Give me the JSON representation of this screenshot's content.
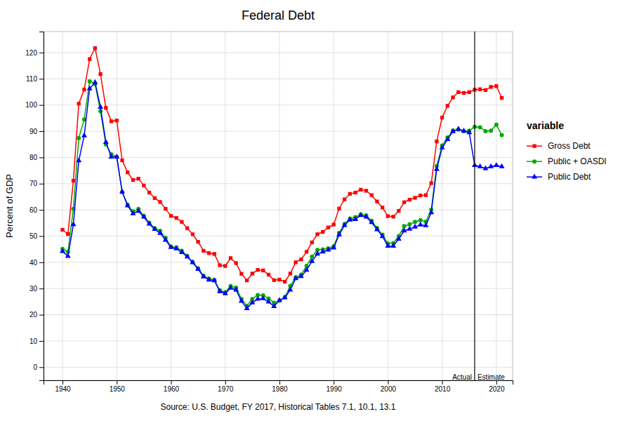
{
  "chart_data": {
    "type": "line",
    "title": "Federal Debt",
    "xlabel": "Source: U.S. Budget, FY 2017, Historical Tables 7.1, 10.1, 13.1",
    "ylabel": "Percent of GDP",
    "legend_title": "variable",
    "legend": "right",
    "grid": true,
    "x": [
      1940,
      1941,
      1942,
      1943,
      1944,
      1945,
      1946,
      1947,
      1948,
      1949,
      1950,
      1951,
      1952,
      1953,
      1954,
      1955,
      1956,
      1957,
      1958,
      1959,
      1960,
      1961,
      1962,
      1963,
      1964,
      1965,
      1966,
      1967,
      1968,
      1969,
      1970,
      1971,
      1972,
      1973,
      1974,
      1975,
      1976,
      1977,
      1978,
      1979,
      1980,
      1981,
      1982,
      1983,
      1984,
      1985,
      1986,
      1987,
      1988,
      1989,
      1990,
      1991,
      1992,
      1993,
      1994,
      1995,
      1996,
      1997,
      1998,
      1999,
      2000,
      2001,
      2002,
      2003,
      2004,
      2005,
      2006,
      2007,
      2008,
      2009,
      2010,
      2011,
      2012,
      2013,
      2014,
      2015,
      2016,
      2017,
      2018,
      2019,
      2020,
      2021
    ],
    "series": [
      {
        "name": "Gross Debt",
        "color": "#FF0000",
        "marker": "square",
        "values": [
          52.4,
          50.8,
          71.1,
          100.5,
          105.9,
          117.5,
          121.7,
          111.8,
          98.9,
          93.8,
          94.1,
          78.9,
          74.3,
          71.4,
          71.9,
          69.3,
          66.6,
          64.5,
          63.0,
          60.4,
          57.7,
          56.9,
          55.4,
          53.0,
          50.7,
          47.8,
          44.4,
          43.5,
          43.2,
          38.9,
          38.6,
          41.6,
          39.7,
          35.6,
          33.1,
          35.7,
          37.1,
          36.9,
          35.3,
          33.2,
          33.4,
          32.6,
          35.7,
          40.0,
          41.1,
          44.0,
          47.6,
          50.7,
          51.6,
          53.3,
          54.4,
          60.5,
          64.0,
          66.1,
          66.6,
          67.7,
          67.3,
          65.6,
          63.2,
          60.9,
          57.6,
          57.4,
          59.6,
          62.9,
          63.9,
          64.6,
          65.5,
          65.6,
          70.2,
          86.1,
          95.2,
          99.7,
          102.9,
          104.9,
          104.6,
          104.9,
          105.8,
          106.0,
          105.7,
          106.9,
          107.2,
          102.7
        ]
      },
      {
        "name": "Public + OASDI",
        "color": "#00AA00",
        "marker": "circle",
        "values": [
          45.1,
          44.0,
          60.4,
          87.4,
          94.5,
          109.0,
          108.0,
          97.6,
          85.0,
          81.2,
          80.2,
          66.8,
          62.0,
          59.4,
          60.4,
          57.7,
          55.1,
          53.0,
          52.0,
          49.3,
          46.0,
          45.7,
          44.4,
          42.4,
          40.1,
          37.7,
          34.9,
          33.8,
          33.3,
          29.3,
          28.6,
          30.9,
          30.3,
          26.0,
          23.4,
          26.0,
          27.5,
          27.4,
          26.2,
          24.6,
          25.4,
          26.7,
          31.0,
          34.3,
          35.3,
          38.6,
          42.2,
          44.7,
          44.9,
          45.3,
          46.1,
          51.2,
          54.6,
          56.7,
          57.2,
          58.3,
          57.9,
          55.8,
          53.1,
          50.5,
          47.2,
          47.3,
          50.0,
          53.8,
          54.5,
          55.4,
          56.1,
          55.5,
          60.1,
          76.7,
          84.5,
          87.6,
          90.3,
          90.6,
          90.0,
          90.2,
          91.7,
          91.5,
          90.0,
          90.2,
          92.5,
          88.5
        ]
      },
      {
        "name": "Public Debt",
        "color": "#0000FF",
        "marker": "triangle",
        "values": [
          44.2,
          42.3,
          54.4,
          78.8,
          88.3,
          106.2,
          108.6,
          99.2,
          85.8,
          80.2,
          80.2,
          66.9,
          61.6,
          58.6,
          59.5,
          57.3,
          54.6,
          52.6,
          51.1,
          48.5,
          45.7,
          45.2,
          43.8,
          42.1,
          39.9,
          37.4,
          34.5,
          33.3,
          33.0,
          28.9,
          28.1,
          30.2,
          29.5,
          25.2,
          22.4,
          24.6,
          26.0,
          26.2,
          24.9,
          23.2,
          25.5,
          26.5,
          29.5,
          33.8,
          34.6,
          37.0,
          40.4,
          43.2,
          44.0,
          44.7,
          45.5,
          50.5,
          54.1,
          56.2,
          56.4,
          57.9,
          57.3,
          55.2,
          52.5,
          49.9,
          46.2,
          46.2,
          48.9,
          52.0,
          52.7,
          53.5,
          54.3,
          54.0,
          59.0,
          75.5,
          83.7,
          86.9,
          89.9,
          90.8,
          90.1,
          89.5,
          77.0,
          76.5,
          75.8,
          76.5,
          77.0,
          76.5
        ]
      }
    ],
    "vertical_line": {
      "x": 2016
    },
    "annotations": [
      {
        "text": "Actual",
        "x": 2016,
        "y": -2.5,
        "align": "right"
      },
      {
        "text": "Estimate",
        "x": 2016,
        "y": -2.5,
        "align": "left"
      }
    ],
    "xlim": [
      1936.5,
      2023
    ],
    "xticks": [
      1940,
      1950,
      1960,
      1970,
      1980,
      1990,
      2000,
      2010,
      2020
    ],
    "ylim": [
      -5,
      128
    ],
    "yticks": [
      0,
      10,
      20,
      30,
      40,
      50,
      60,
      70,
      80,
      90,
      100,
      110,
      120
    ]
  }
}
